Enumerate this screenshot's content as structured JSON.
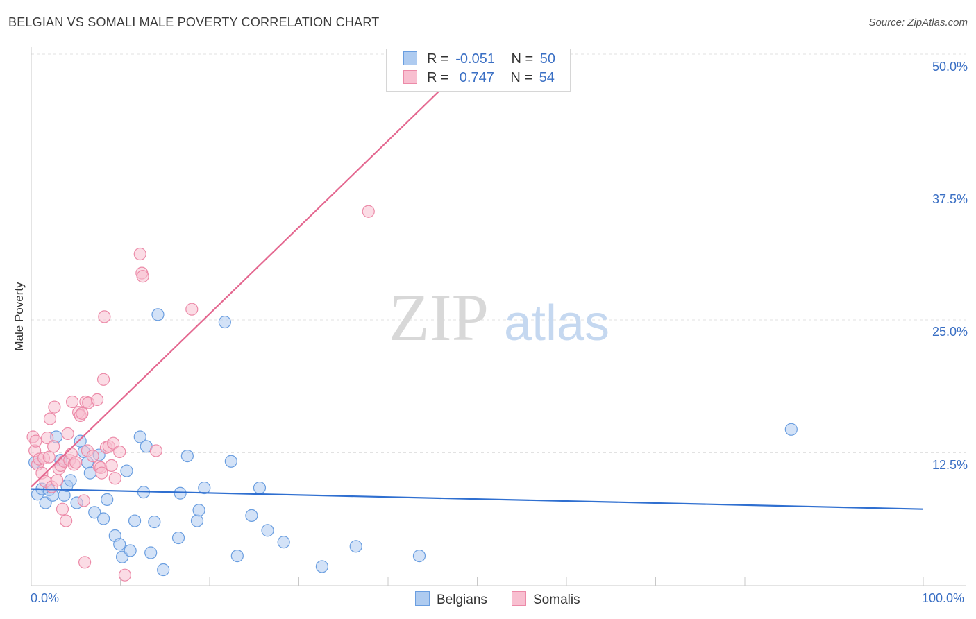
{
  "header": {
    "title": "BELGIAN VS SOMALI MALE POVERTY CORRELATION CHART",
    "source": "Source: ZipAtlas.com"
  },
  "watermark": {
    "zip": "ZIP",
    "atlas": "atlas"
  },
  "legend": {
    "belgians": {
      "r_label": "R =",
      "r_value": "-0.051",
      "n_label": "N =",
      "n_value": "50"
    },
    "somalis": {
      "r_label": "R =",
      "r_value": " 0.747",
      "n_label": "N =",
      "n_value": "54"
    }
  },
  "bottom_legend": {
    "belgians": "Belgians",
    "somalis": "Somalis"
  },
  "colors": {
    "belgian_fill": "#aecbf0",
    "belgian_stroke": "#6a9ee0",
    "belgian_line": "#2f6fd0",
    "somali_fill": "#f8bfd0",
    "somali_stroke": "#ec8aa8",
    "somali_line": "#e46890",
    "tick_text": "#3a6fc4"
  },
  "chart_data": {
    "type": "scatter",
    "title": "BELGIAN VS SOMALI MALE POVERTY CORRELATION CHART",
    "xlabel": "",
    "ylabel": "Male Poverty",
    "xlim": [
      0,
      100
    ],
    "ylim": [
      0,
      50
    ],
    "x_tick_labels": [
      "0.0%",
      "100.0%"
    ],
    "y_ticks": [
      12.5,
      25.0,
      37.5,
      50.0
    ],
    "y_tick_labels": [
      "12.5%",
      "25.0%",
      "37.5%",
      "50.0%"
    ],
    "grid": true,
    "series": [
      {
        "name": "Belgians",
        "r": -0.051,
        "n": 50,
        "trend": {
          "x": [
            0,
            100
          ],
          "y": [
            9.1,
            7.2
          ]
        },
        "points": [
          [
            0.4,
            11.6
          ],
          [
            0.7,
            8.6
          ],
          [
            1.2,
            9.1
          ],
          [
            1.6,
            7.8
          ],
          [
            2.0,
            9.0
          ],
          [
            2.4,
            8.5
          ],
          [
            2.8,
            14.0
          ],
          [
            3.3,
            11.8
          ],
          [
            3.7,
            8.5
          ],
          [
            4.0,
            9.4
          ],
          [
            4.4,
            9.9
          ],
          [
            5.1,
            7.8
          ],
          [
            5.5,
            13.6
          ],
          [
            5.9,
            12.6
          ],
          [
            6.3,
            11.6
          ],
          [
            6.6,
            10.6
          ],
          [
            7.1,
            6.9
          ],
          [
            7.6,
            12.3
          ],
          [
            8.1,
            6.3
          ],
          [
            8.5,
            8.1
          ],
          [
            9.4,
            4.7
          ],
          [
            9.9,
            3.9
          ],
          [
            10.2,
            2.7
          ],
          [
            10.7,
            10.8
          ],
          [
            11.1,
            3.3
          ],
          [
            11.6,
            6.1
          ],
          [
            12.2,
            14.0
          ],
          [
            12.6,
            8.8
          ],
          [
            12.9,
            13.1
          ],
          [
            13.4,
            3.1
          ],
          [
            13.8,
            6.0
          ],
          [
            14.2,
            25.5
          ],
          [
            14.8,
            1.5
          ],
          [
            16.5,
            4.5
          ],
          [
            16.7,
            8.7
          ],
          [
            17.5,
            12.2
          ],
          [
            18.6,
            6.1
          ],
          [
            18.8,
            7.1
          ],
          [
            19.4,
            9.2
          ],
          [
            21.7,
            24.8
          ],
          [
            22.4,
            11.7
          ],
          [
            23.1,
            2.8
          ],
          [
            24.7,
            6.6
          ],
          [
            25.6,
            9.2
          ],
          [
            26.5,
            5.2
          ],
          [
            28.3,
            4.1
          ],
          [
            32.6,
            1.8
          ],
          [
            36.4,
            3.7
          ],
          [
            43.5,
            2.8
          ],
          [
            85.2,
            14.7
          ]
        ]
      },
      {
        "name": "Somalis",
        "r": 0.747,
        "n": 54,
        "trend": {
          "x": [
            0,
            50
          ],
          "y": [
            9.3,
            50.0
          ]
        },
        "points": [
          [
            0.2,
            14.0
          ],
          [
            0.4,
            12.7
          ],
          [
            0.5,
            13.6
          ],
          [
            0.7,
            11.4
          ],
          [
            0.9,
            11.9
          ],
          [
            1.2,
            10.6
          ],
          [
            1.4,
            12.0
          ],
          [
            1.6,
            9.8
          ],
          [
            1.8,
            13.9
          ],
          [
            2.0,
            12.1
          ],
          [
            2.1,
            15.7
          ],
          [
            2.3,
            9.3
          ],
          [
            2.5,
            13.1
          ],
          [
            2.6,
            16.8
          ],
          [
            2.9,
            9.9
          ],
          [
            3.1,
            11.0
          ],
          [
            3.3,
            11.3
          ],
          [
            3.5,
            7.2
          ],
          [
            3.7,
            11.7
          ],
          [
            3.9,
            6.1
          ],
          [
            4.1,
            14.3
          ],
          [
            4.3,
            11.8
          ],
          [
            4.5,
            12.4
          ],
          [
            4.6,
            17.3
          ],
          [
            4.8,
            11.4
          ],
          [
            5.0,
            11.6
          ],
          [
            5.3,
            16.3
          ],
          [
            5.5,
            16.0
          ],
          [
            5.7,
            16.2
          ],
          [
            5.9,
            8.0
          ],
          [
            6.0,
            2.2
          ],
          [
            6.1,
            17.3
          ],
          [
            6.3,
            12.7
          ],
          [
            6.4,
            17.2
          ],
          [
            6.9,
            12.2
          ],
          [
            7.4,
            17.5
          ],
          [
            7.6,
            11.2
          ],
          [
            7.8,
            11.1
          ],
          [
            7.9,
            10.6
          ],
          [
            8.1,
            19.4
          ],
          [
            8.2,
            25.3
          ],
          [
            8.4,
            13.0
          ],
          [
            8.7,
            13.1
          ],
          [
            9.0,
            11.3
          ],
          [
            9.2,
            13.4
          ],
          [
            9.4,
            10.1
          ],
          [
            9.9,
            12.6
          ],
          [
            10.5,
            1.0
          ],
          [
            12.2,
            31.2
          ],
          [
            12.4,
            29.4
          ],
          [
            12.5,
            29.1
          ],
          [
            14.0,
            12.7
          ],
          [
            18.0,
            26.0
          ],
          [
            37.8,
            35.2
          ]
        ]
      }
    ]
  }
}
